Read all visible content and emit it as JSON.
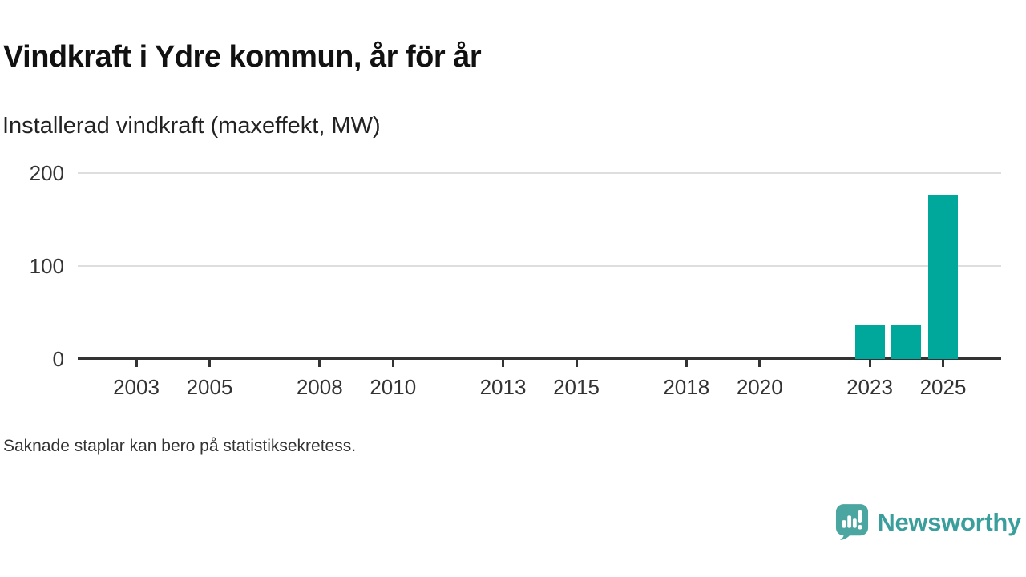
{
  "title": "Vindkraft i Ydre kommun, år för år",
  "subtitle": "Installerad vindkraft (maxeffekt, MW)",
  "footnote": "Saknade staplar kan bero på statistiksekretess.",
  "brand": {
    "name": "Newsworthy",
    "icon": "newsworthy-speech-bubble-chart-icon",
    "text_color": "#3a9f9c",
    "icon_color": "#4ba6a1"
  },
  "colors": {
    "bar": "#00a79b",
    "axis": "#333333",
    "grid": "#dedede",
    "label_text": "#333333",
    "background": "#ffffff"
  },
  "chart_data": {
    "type": "bar",
    "title": "Vindkraft i Ydre kommun, år för år",
    "subtitle": "Installerad vindkraft (maxeffekt, MW)",
    "xlabel": "",
    "ylabel": "Installerad vindkraft (maxeffekt, MW)",
    "ylim": [
      0,
      200
    ],
    "yticks": [
      0,
      100,
      200
    ],
    "xticks": [
      2003,
      2005,
      2008,
      2010,
      2013,
      2015,
      2018,
      2020,
      2023,
      2025
    ],
    "x_range": [
      2002,
      2026
    ],
    "grid": "horizontal",
    "legend": "none",
    "bar_color": "#00a79b",
    "series": [
      {
        "name": "Installerad vindkraft (maxeffekt, MW)",
        "points": [
          {
            "year": 2023,
            "value": 36
          },
          {
            "year": 2024,
            "value": 36
          },
          {
            "year": 2025,
            "value": 177
          }
        ]
      }
    ]
  }
}
